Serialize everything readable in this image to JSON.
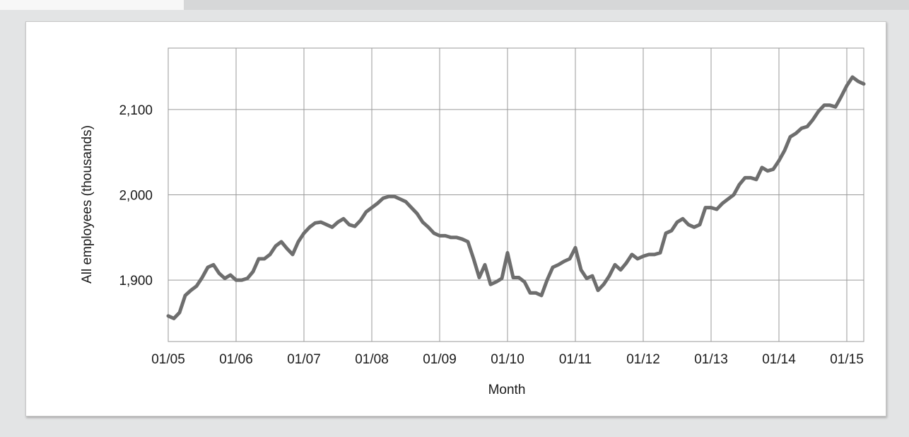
{
  "chart_data": {
    "type": "line",
    "title": "",
    "xlabel": "Month",
    "ylabel": "All employees (thousands)",
    "x_tick_labels": [
      "01/05",
      "01/06",
      "01/07",
      "01/08",
      "01/09",
      "01/10",
      "01/11",
      "01/12",
      "01/13",
      "01/14",
      "01/15"
    ],
    "y_tick_labels": [
      "1,900",
      "2,000",
      "2,100"
    ],
    "y_ticks": [
      1900,
      2000,
      2100
    ],
    "ylim": [
      1828,
      2172
    ],
    "xlim": [
      "2005-01",
      "2015-04"
    ],
    "grid": true,
    "line_color": "#6e6e6e",
    "series": [
      {
        "x": [
          "2005-01",
          "2005-02",
          "2005-03",
          "2005-04",
          "2005-05",
          "2005-06",
          "2005-07",
          "2005-08",
          "2005-09",
          "2005-10",
          "2005-11",
          "2005-12",
          "2006-01",
          "2006-02",
          "2006-03",
          "2006-04",
          "2006-05",
          "2006-06",
          "2006-07",
          "2006-08",
          "2006-09",
          "2006-10",
          "2006-11",
          "2006-12",
          "2007-01",
          "2007-02",
          "2007-03",
          "2007-04",
          "2007-05",
          "2007-06",
          "2007-07",
          "2007-08",
          "2007-09",
          "2007-10",
          "2007-11",
          "2007-12",
          "2008-01",
          "2008-02",
          "2008-03",
          "2008-04",
          "2008-05",
          "2008-06",
          "2008-07",
          "2008-08",
          "2008-09",
          "2008-10",
          "2008-11",
          "2008-12",
          "2009-01",
          "2009-02",
          "2009-03",
          "2009-04",
          "2009-05",
          "2009-06",
          "2009-07",
          "2009-08",
          "2009-09",
          "2009-10",
          "2009-11",
          "2009-12",
          "2010-01",
          "2010-02",
          "2010-03",
          "2010-04",
          "2010-05",
          "2010-06",
          "2010-07",
          "2010-08",
          "2010-09",
          "2010-10",
          "2010-11",
          "2010-12",
          "2011-01",
          "2011-02",
          "2011-03",
          "2011-04",
          "2011-05",
          "2011-06",
          "2011-07",
          "2011-08",
          "2011-09",
          "2011-10",
          "2011-11",
          "2011-12",
          "2012-01",
          "2012-02",
          "2012-03",
          "2012-04",
          "2012-05",
          "2012-06",
          "2012-07",
          "2012-08",
          "2012-09",
          "2012-10",
          "2012-11",
          "2012-12",
          "2013-01",
          "2013-02",
          "2013-03",
          "2013-04",
          "2013-05",
          "2013-06",
          "2013-07",
          "2013-08",
          "2013-09",
          "2013-10",
          "2013-11",
          "2013-12",
          "2014-01",
          "2014-02",
          "2014-03",
          "2014-04",
          "2014-05",
          "2014-06",
          "2014-07",
          "2014-08",
          "2014-09",
          "2014-10",
          "2014-11",
          "2014-12",
          "2015-01",
          "2015-02",
          "2015-03",
          "2015-04"
        ],
        "y": [
          1858,
          1855,
          1862,
          1882,
          1888,
          1893,
          1903,
          1915,
          1918,
          1908,
          1902,
          1906,
          1900,
          1900,
          1902,
          1910,
          1925,
          1925,
          1930,
          1940,
          1945,
          1937,
          1930,
          1945,
          1955,
          1962,
          1967,
          1968,
          1965,
          1962,
          1968,
          1972,
          1965,
          1963,
          1970,
          1980,
          1985,
          1990,
          1996,
          1998,
          1998,
          1995,
          1992,
          1985,
          1978,
          1968,
          1962,
          1955,
          1952,
          1952,
          1950,
          1950,
          1948,
          1945,
          1925,
          1903,
          1918,
          1895,
          1898,
          1902,
          1932,
          1903,
          1903,
          1898,
          1885,
          1885,
          1882,
          1900,
          1915,
          1918,
          1922,
          1925,
          1938,
          1912,
          1902,
          1905,
          1888,
          1895,
          1905,
          1918,
          1912,
          1920,
          1930,
          1925,
          1928,
          1930,
          1930,
          1932,
          1955,
          1958,
          1968,
          1972,
          1965,
          1962,
          1965,
          1985,
          1985,
          1983,
          1990,
          1995,
          2000,
          2012,
          2020,
          2020,
          2018,
          2032,
          2028,
          2030,
          2040,
          2052,
          2068,
          2072,
          2078,
          2080,
          2088,
          2098,
          2105,
          2105,
          2103,
          2115,
          2128,
          2138,
          2133,
          2130
        ]
      }
    ]
  }
}
